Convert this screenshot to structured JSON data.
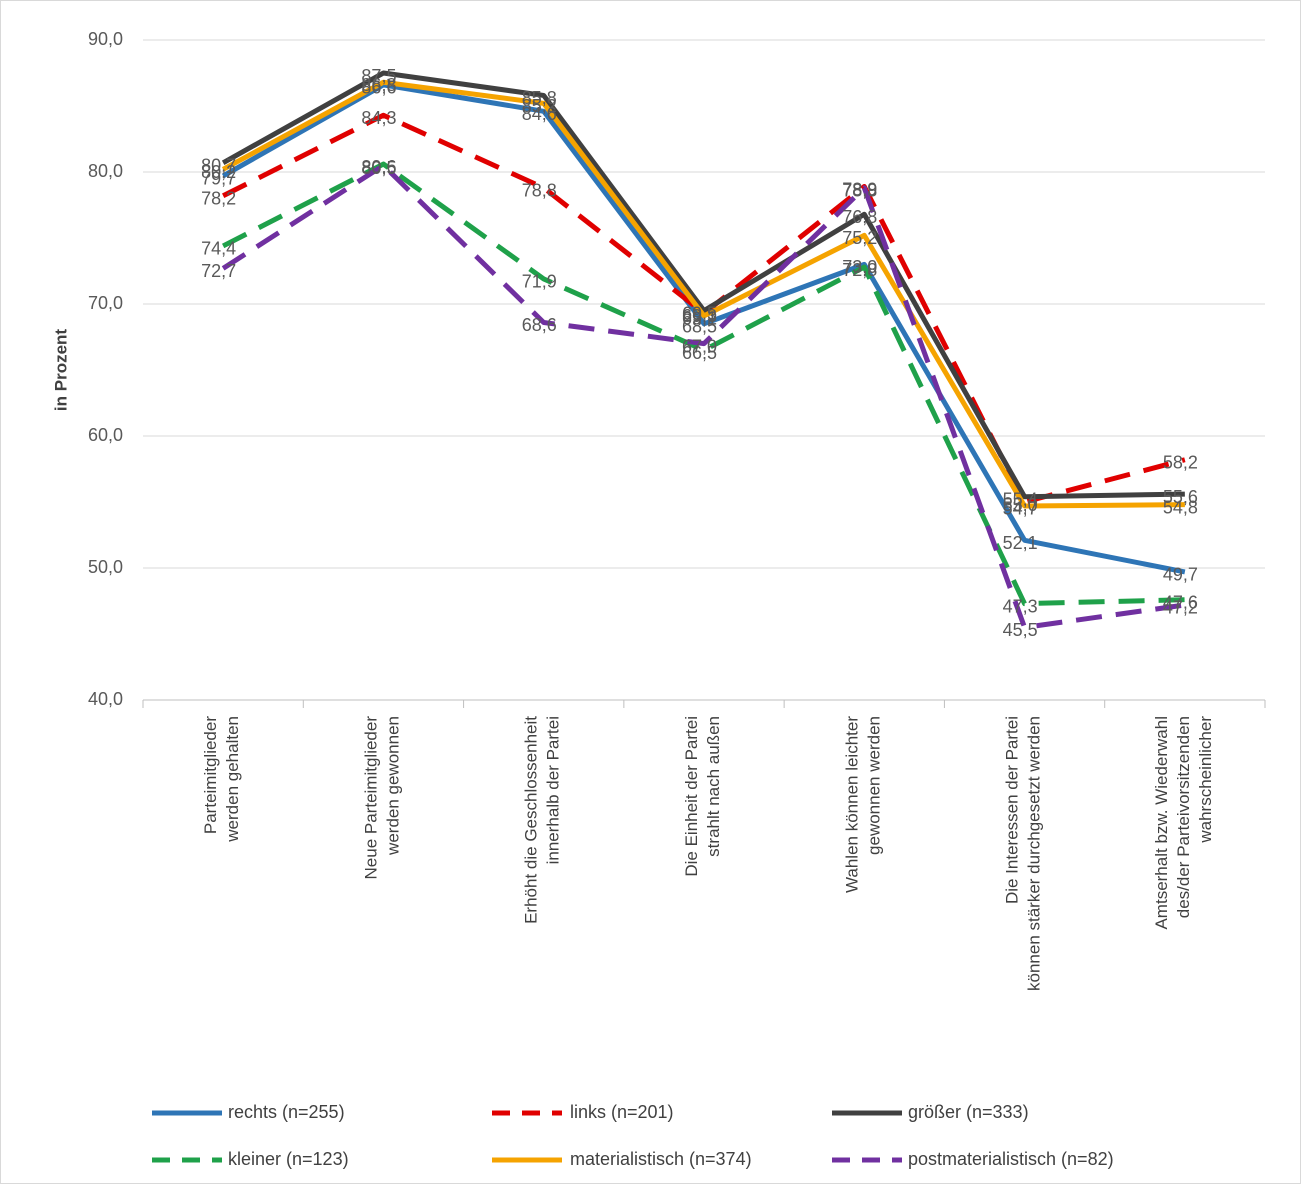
{
  "chart_data": {
    "type": "line",
    "y_label": "in Prozent",
    "categories": [
      "Parteimitglieder\nwerden gehalten",
      "Neue Parteimitglieder\nwerden gewonnen",
      "Erhöht die Geschlossenheit\ninnerhalb der Partei",
      "Die Einheit der Partei\nstrahlt nach außen",
      "Wahlen können leichter\ngewonnen werden",
      "Die Interessen der Partei\nkönnen stärker durchgesetzt werden",
      "Amtserhalt bzw. Wiederwahl\ndes/der Parteivorsitzenden\nwahrscheinlicher"
    ],
    "ylim": [
      40,
      90
    ],
    "yticks": [
      {
        "value": 40,
        "label": "40,0"
      },
      {
        "value": 50,
        "label": "50,0"
      },
      {
        "value": 60,
        "label": "60,0"
      },
      {
        "value": 70,
        "label": "70,0"
      },
      {
        "value": 80,
        "label": "80,0"
      },
      {
        "value": 90,
        "label": "90,0"
      }
    ],
    "grid": true,
    "legend": "bottom",
    "series": [
      {
        "name": "rechts (n=255)",
        "color": "#2e75b6",
        "dashed": false,
        "values": [
          79.7,
          86.6,
          84.6,
          68.5,
          73.0,
          52.1,
          49.7
        ],
        "value_labels": [
          "79,7",
          "86,6",
          "84,6",
          "68,5",
          "73,0",
          "52,1",
          "49,7"
        ]
      },
      {
        "name": "links (n=201)",
        "color": "#e00000",
        "dashed": true,
        "values": [
          78.2,
          84.3,
          78.8,
          69.3,
          78.9,
          55.0,
          58.2
        ],
        "value_labels": [
          "78,2",
          "84,3",
          "78,8",
          "69,3",
          "78,9",
          "55,0",
          "58,2"
        ]
      },
      {
        "name": "größer (n=333)",
        "color": "#404040",
        "dashed": false,
        "values": [
          80.7,
          87.5,
          85.8,
          69.5,
          76.8,
          55.4,
          55.6
        ],
        "value_labels": [
          "80,7",
          "87,5",
          "85,8",
          "69,5",
          "76,8",
          "55,4",
          "55,6"
        ]
      },
      {
        "name": "kleiner (n=123)",
        "color": "#1fa14a",
        "dashed": true,
        "values": [
          74.4,
          80.6,
          71.9,
          66.5,
          72.8,
          47.3,
          47.6
        ],
        "value_labels": [
          "74,4",
          "80,6",
          "71,9",
          "66,5",
          "72,8",
          "47,3",
          "47,6"
        ]
      },
      {
        "name": "materialistisch (n=374)",
        "color": "#f5a300",
        "dashed": false,
        "values": [
          80.2,
          86.8,
          85.2,
          69.1,
          75.2,
          54.7,
          54.8
        ],
        "value_labels": [
          "80,2",
          "86,8",
          "85,2",
          "69,1",
          "75,2",
          "54,7",
          "54,8"
        ]
      },
      {
        "name": "postmaterialistisch (n=82)",
        "color": "#7030a0",
        "dashed": true,
        "values": [
          72.7,
          80.5,
          68.6,
          67.0,
          78.8,
          45.5,
          47.2
        ],
        "value_labels": [
          "72,7",
          "80,5",
          "68,6",
          "67,0",
          "78,8",
          "45,5",
          "47,2"
        ]
      }
    ]
  }
}
